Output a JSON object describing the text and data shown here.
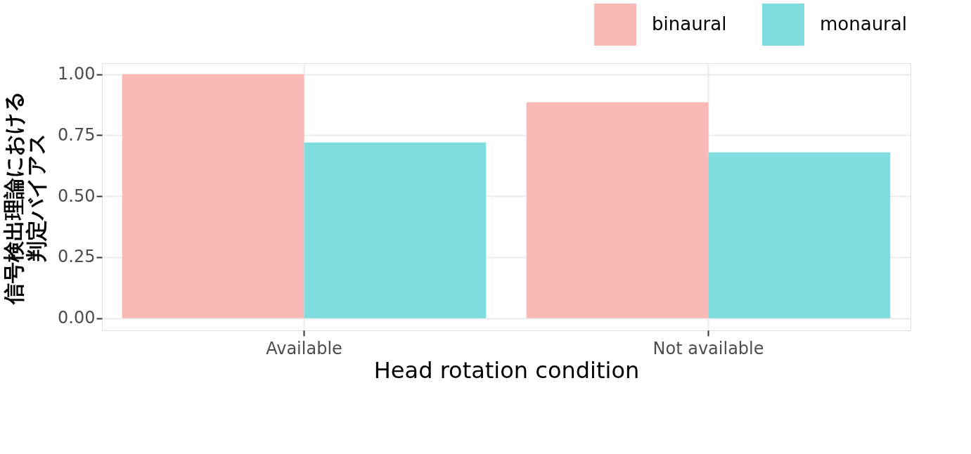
{
  "chart_data": {
    "type": "bar",
    "xlabel": "Head rotation condition",
    "ylabel": "信号検出理論における判定バイアス",
    "categories": [
      "Available",
      "Not available"
    ],
    "series": [
      {
        "name": "binaural",
        "color": "#f9b9b5",
        "values": [
          1.0,
          0.885
        ]
      },
      {
        "name": "monaural",
        "color": "#7fdde0",
        "values": [
          0.72,
          0.68
        ]
      }
    ],
    "ylim": [
      -0.05,
      1.045
    ],
    "yticks": [
      {
        "value": 0,
        "label": "0.00"
      },
      {
        "value": 0.25,
        "label": "0.25"
      },
      {
        "value": 0.5,
        "label": "0.50"
      },
      {
        "value": 0.75,
        "label": "0.75"
      },
      {
        "value": 1,
        "label": "1.00"
      }
    ],
    "grid": true,
    "legend": "top right"
  }
}
